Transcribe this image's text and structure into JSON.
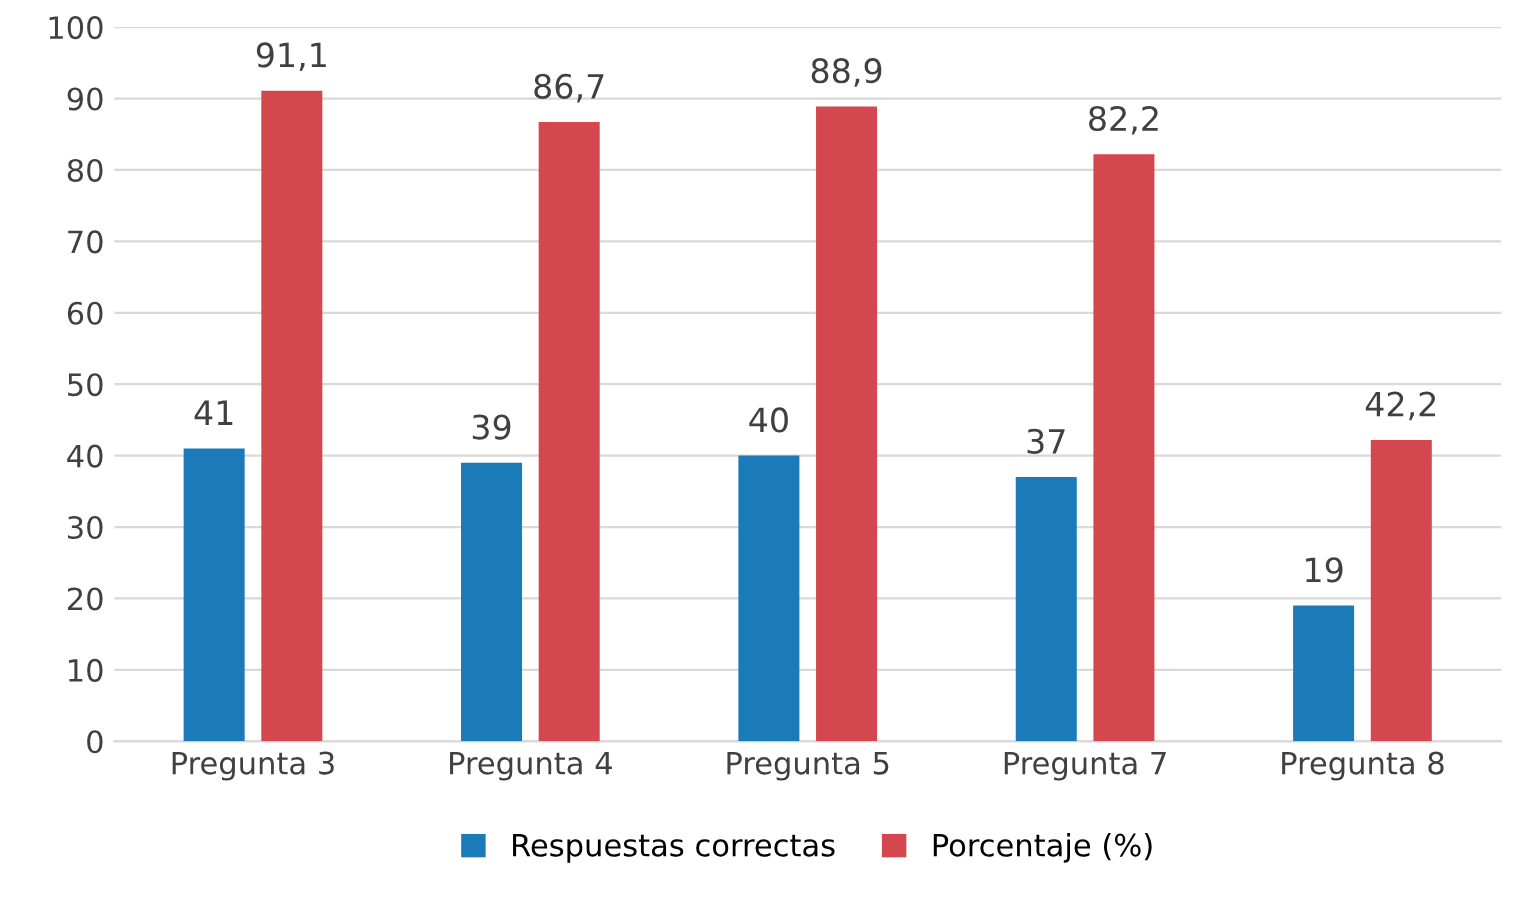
{
  "chart_data": {
    "type": "bar",
    "categories": [
      "Pregunta 3",
      "Pregunta 4",
      "Pregunta 5",
      "Pregunta 7",
      "Pregunta 8"
    ],
    "series": [
      {
        "name": "Respuestas correctas",
        "color": "#1b7bb8",
        "values": [
          41,
          39,
          40,
          37,
          19
        ],
        "value_labels": [
          "41",
          "39",
          "40",
          "37",
          "19"
        ]
      },
      {
        "name": "Porcentaje (%)",
        "color": "#d4474f",
        "values": [
          91.1,
          86.7,
          88.9,
          82.2,
          42.2
        ],
        "value_labels": [
          "91,1",
          "86,7",
          "88,9",
          "82,2",
          "42,2"
        ]
      }
    ],
    "ylim": [
      0,
      100
    ],
    "yticks": [
      0,
      10,
      20,
      30,
      40,
      50,
      60,
      70,
      80,
      90,
      100
    ],
    "grid": "y",
    "legend": "bottom"
  }
}
